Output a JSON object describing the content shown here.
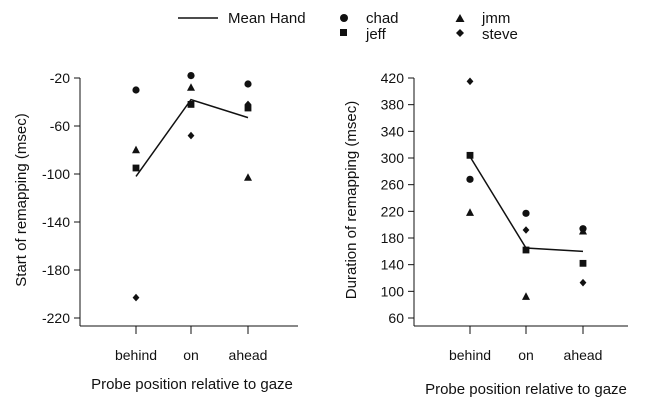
{
  "legend": {
    "items": [
      {
        "label": "Mean Hand",
        "marker": "line"
      },
      {
        "label": "chad",
        "marker": "circle"
      },
      {
        "label": "jeff",
        "marker": "square"
      },
      {
        "label": "jmm",
        "marker": "triangle"
      },
      {
        "label": "steve",
        "marker": "diamond"
      }
    ]
  },
  "chart_data": [
    {
      "type": "scatter",
      "categories": [
        "behind",
        "on",
        "ahead"
      ],
      "ylabel": "Start of remapping (msec)",
      "xlabel": "Probe position relative to gaze",
      "ylim": [
        -220,
        -20
      ],
      "yticks": [
        -20,
        -60,
        -100,
        -140,
        -180,
        -220
      ],
      "series": [
        {
          "name": "chad",
          "marker": "circle",
          "values": [
            -30,
            -18,
            -25
          ]
        },
        {
          "name": "jeff",
          "marker": "square",
          "values": [
            -95,
            -42,
            -45
          ]
        },
        {
          "name": "jmm",
          "marker": "triangle",
          "values": [
            -80,
            -28,
            -103
          ]
        },
        {
          "name": "steve",
          "marker": "diamond",
          "values": [
            -203,
            -68,
            -42
          ]
        },
        {
          "name": "Mean Hand",
          "marker": "line",
          "values": [
            -102,
            -38,
            -53
          ]
        }
      ]
    },
    {
      "type": "scatter",
      "categories": [
        "behind",
        "on",
        "ahead"
      ],
      "ylabel": "Duration of remapping (msec)",
      "xlabel": "Probe position relative to gaze",
      "ylim": [
        60,
        420
      ],
      "yticks": [
        60,
        100,
        140,
        180,
        220,
        260,
        300,
        340,
        380,
        420
      ],
      "series": [
        {
          "name": "chad",
          "marker": "circle",
          "values": [
            268,
            217,
            194
          ]
        },
        {
          "name": "jeff",
          "marker": "square",
          "values": [
            304,
            162,
            142
          ]
        },
        {
          "name": "jmm",
          "marker": "triangle",
          "values": [
            218,
            92,
            190
          ]
        },
        {
          "name": "steve",
          "marker": "diamond",
          "values": [
            415,
            192,
            113
          ]
        },
        {
          "name": "Mean Hand",
          "marker": "line",
          "values": [
            302,
            165,
            160
          ]
        }
      ]
    }
  ]
}
